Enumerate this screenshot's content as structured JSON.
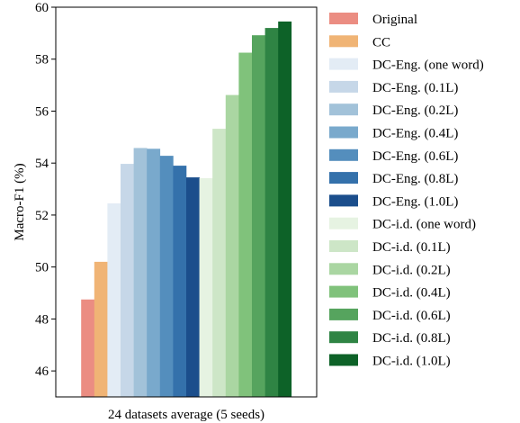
{
  "chart_data": {
    "type": "bar",
    "categories": [
      "24 datasets average (5 seeds)"
    ],
    "xlabel": "24 datasets average (5 seeds)",
    "ylabel": "Macro-F1 (%)",
    "ylim": [
      45,
      60
    ],
    "yticks": [
      46,
      48,
      50,
      52,
      54,
      56,
      58,
      60
    ],
    "grid": false,
    "legend_position": "right",
    "series": [
      {
        "name": "Original",
        "values": [
          48.75
        ],
        "color": "#eb8d82"
      },
      {
        "name": "CC",
        "values": [
          50.2
        ],
        "color": "#f0b475"
      },
      {
        "name": "DC-Eng. (one word)",
        "values": [
          52.45
        ],
        "color": "#e3ecf5"
      },
      {
        "name": "DC-Eng. (0.1L)",
        "values": [
          53.97
        ],
        "color": "#c6d7e8"
      },
      {
        "name": "DC-Eng. (0.2L)",
        "values": [
          54.58
        ],
        "color": "#a2c2d9"
      },
      {
        "name": "DC-Eng. (0.4L)",
        "values": [
          54.55
        ],
        "color": "#79a9cc"
      },
      {
        "name": "DC-Eng. (0.6L)",
        "values": [
          54.28
        ],
        "color": "#548ebd"
      },
      {
        "name": "DC-Eng. (0.8L)",
        "values": [
          53.9
        ],
        "color": "#3471ab"
      },
      {
        "name": "DC-Eng. (1.0L)",
        "values": [
          53.45
        ],
        "color": "#1b4e8c"
      },
      {
        "name": "DC-i.d. (one word)",
        "values": [
          53.42
        ],
        "color": "#e6f3e2"
      },
      {
        "name": "DC-i.d. (0.1L)",
        "values": [
          55.32
        ],
        "color": "#cde6c7"
      },
      {
        "name": "DC-i.d. (0.2L)",
        "values": [
          56.62
        ],
        "color": "#aad6a2"
      },
      {
        "name": "DC-i.d. (0.4L)",
        "values": [
          58.25
        ],
        "color": "#80c27b"
      },
      {
        "name": "DC-i.d. (0.6L)",
        "values": [
          58.92
        ],
        "color": "#56a45e"
      },
      {
        "name": "DC-i.d. (0.8L)",
        "values": [
          59.2
        ],
        "color": "#2f8444"
      },
      {
        "name": "DC-i.d. (1.0L)",
        "values": [
          59.45
        ],
        "color": "#0d6228"
      }
    ]
  }
}
